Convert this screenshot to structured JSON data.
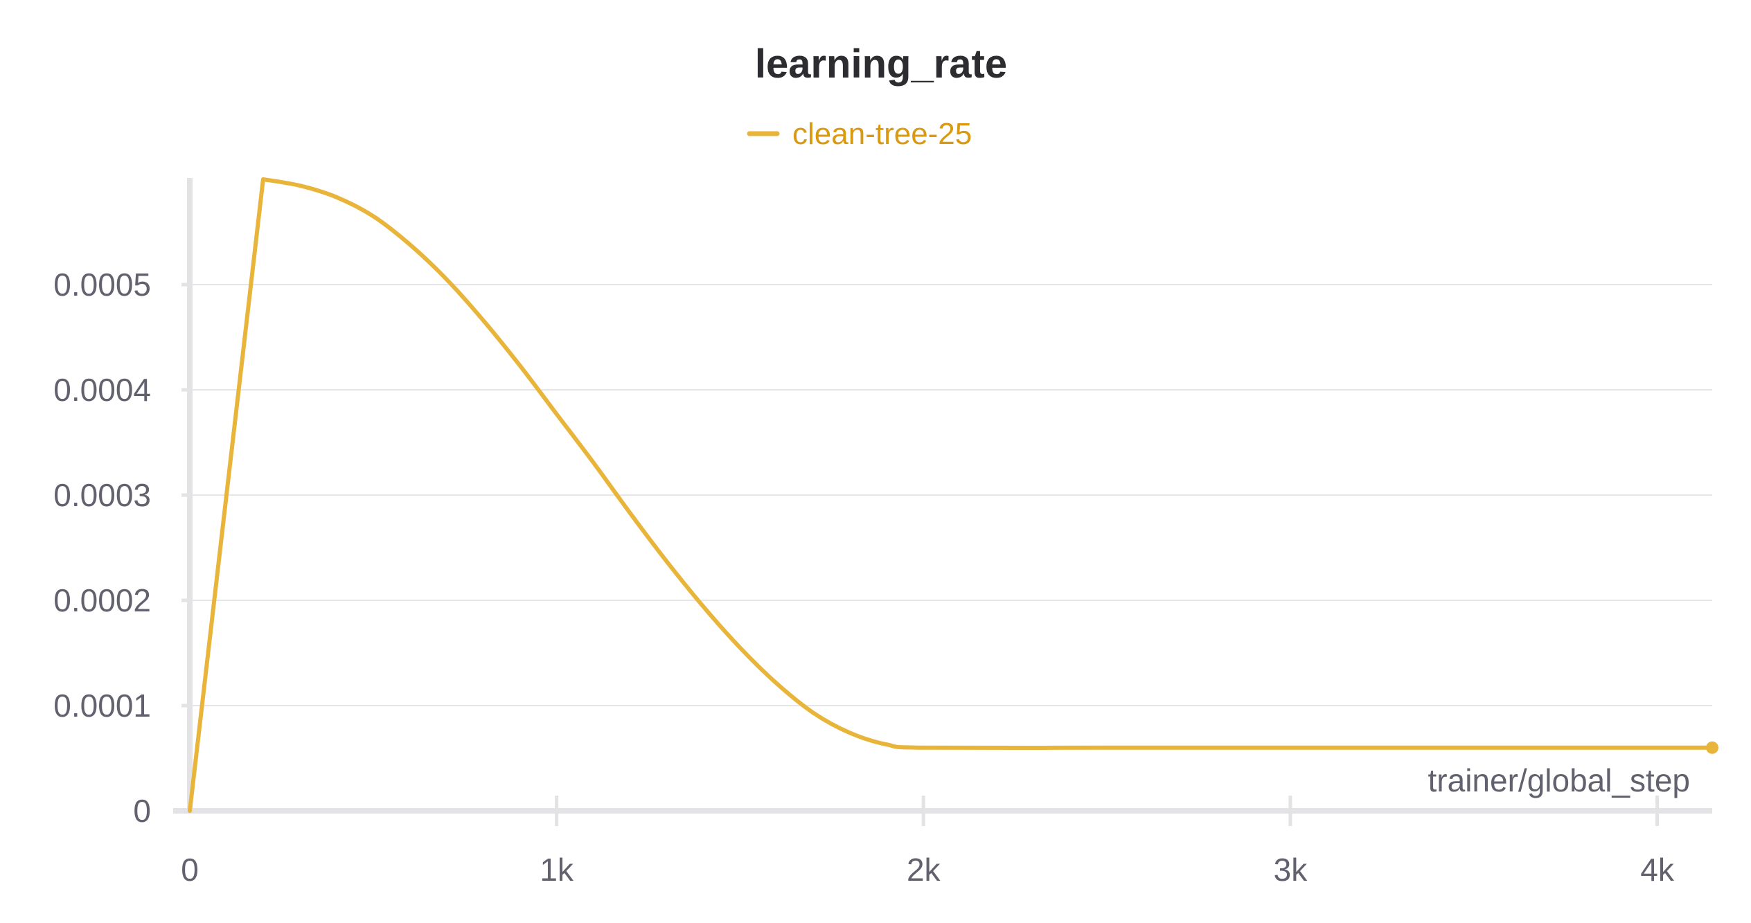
{
  "chart_data": {
    "type": "line",
    "title": "learning_rate",
    "xlabel": "trainer/global_step",
    "ylabel": "",
    "xlim": [
      0,
      4150
    ],
    "ylim": [
      0,
      0.0006
    ],
    "x_ticks": [
      0,
      1000,
      2000,
      3000,
      4000
    ],
    "x_tick_labels": [
      "0",
      "1k",
      "2k",
      "3k",
      "4k"
    ],
    "y_ticks": [
      0,
      0.0001,
      0.0002,
      0.0003,
      0.0004,
      0.0005
    ],
    "y_tick_labels": [
      "0",
      "0.0001",
      "0.0002",
      "0.0003",
      "0.0004",
      "0.0005"
    ],
    "grid": "horizontal",
    "legend_position": "top-center",
    "colors": {
      "series": "#e8b53a",
      "legend_text": "#d99a12"
    },
    "series": [
      {
        "name": "clean-tree-25",
        "x": [
          0,
          200,
          300,
          400,
          500,
          600,
          700,
          800,
          900,
          1000,
          1100,
          1200,
          1300,
          1400,
          1500,
          1600,
          1700,
          1800,
          1900,
          2000,
          2500,
          3000,
          3500,
          4000,
          4150
        ],
        "y": [
          0,
          0.0006,
          0.000594,
          0.000583,
          0.000565,
          0.000538,
          0.000505,
          0.000466,
          0.000423,
          0.000377,
          0.000331,
          0.000283,
          0.000237,
          0.000194,
          0.000155,
          0.000121,
          9.3e-05,
          7.4e-05,
          6.3e-05,
          6e-05,
          6e-05,
          6e-05,
          6e-05,
          6e-05,
          6e-05
        ]
      }
    ]
  }
}
